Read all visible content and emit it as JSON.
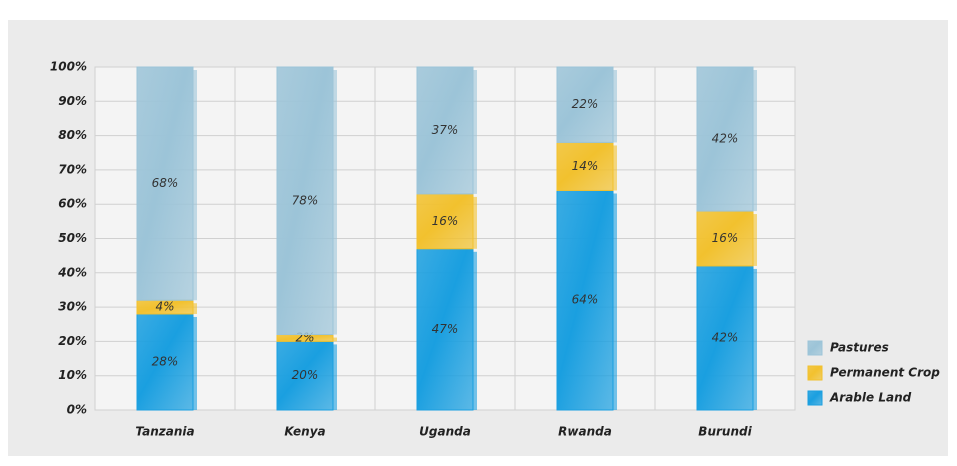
{
  "chart_data": {
    "type": "stacked_bar",
    "categories": [
      "Tanzania",
      "Kenya",
      "Uganda",
      "Rwanda",
      "Burundi"
    ],
    "series": [
      {
        "name": "Arable Land",
        "color": "#1a9fe0",
        "values": [
          28,
          20,
          47,
          64,
          42
        ],
        "value_labels": [
          "28%",
          "20%",
          "47%",
          "64%",
          "42%"
        ]
      },
      {
        "name": "Permanent Crop",
        "color": "#f2c12e",
        "values": [
          4,
          2,
          16,
          14,
          16
        ],
        "value_labels": [
          "4%",
          "2%",
          "16%",
          "14%",
          "16%"
        ]
      },
      {
        "name": "Pastures",
        "color": "#9cc4d8",
        "values": [
          68,
          78,
          37,
          22,
          42
        ],
        "value_labels": [
          "68%",
          "78%",
          "37%",
          "22%",
          "42%"
        ]
      }
    ],
    "ylim": [
      0,
      100
    ],
    "yticks": [
      {
        "value": 0,
        "label": "0%"
      },
      {
        "value": 10,
        "label": "10%"
      },
      {
        "value": 20,
        "label": "20%"
      },
      {
        "value": 30,
        "label": "30%"
      },
      {
        "value": 40,
        "label": "40%"
      },
      {
        "value": 50,
        "label": "50%"
      },
      {
        "value": 60,
        "label": "60%"
      },
      {
        "value": 70,
        "label": "70%"
      },
      {
        "value": 80,
        "label": "80%"
      },
      {
        "value": 90,
        "label": "90%"
      },
      {
        "value": 100,
        "label": "100%"
      }
    ],
    "grid": true,
    "legend": "lower right"
  }
}
